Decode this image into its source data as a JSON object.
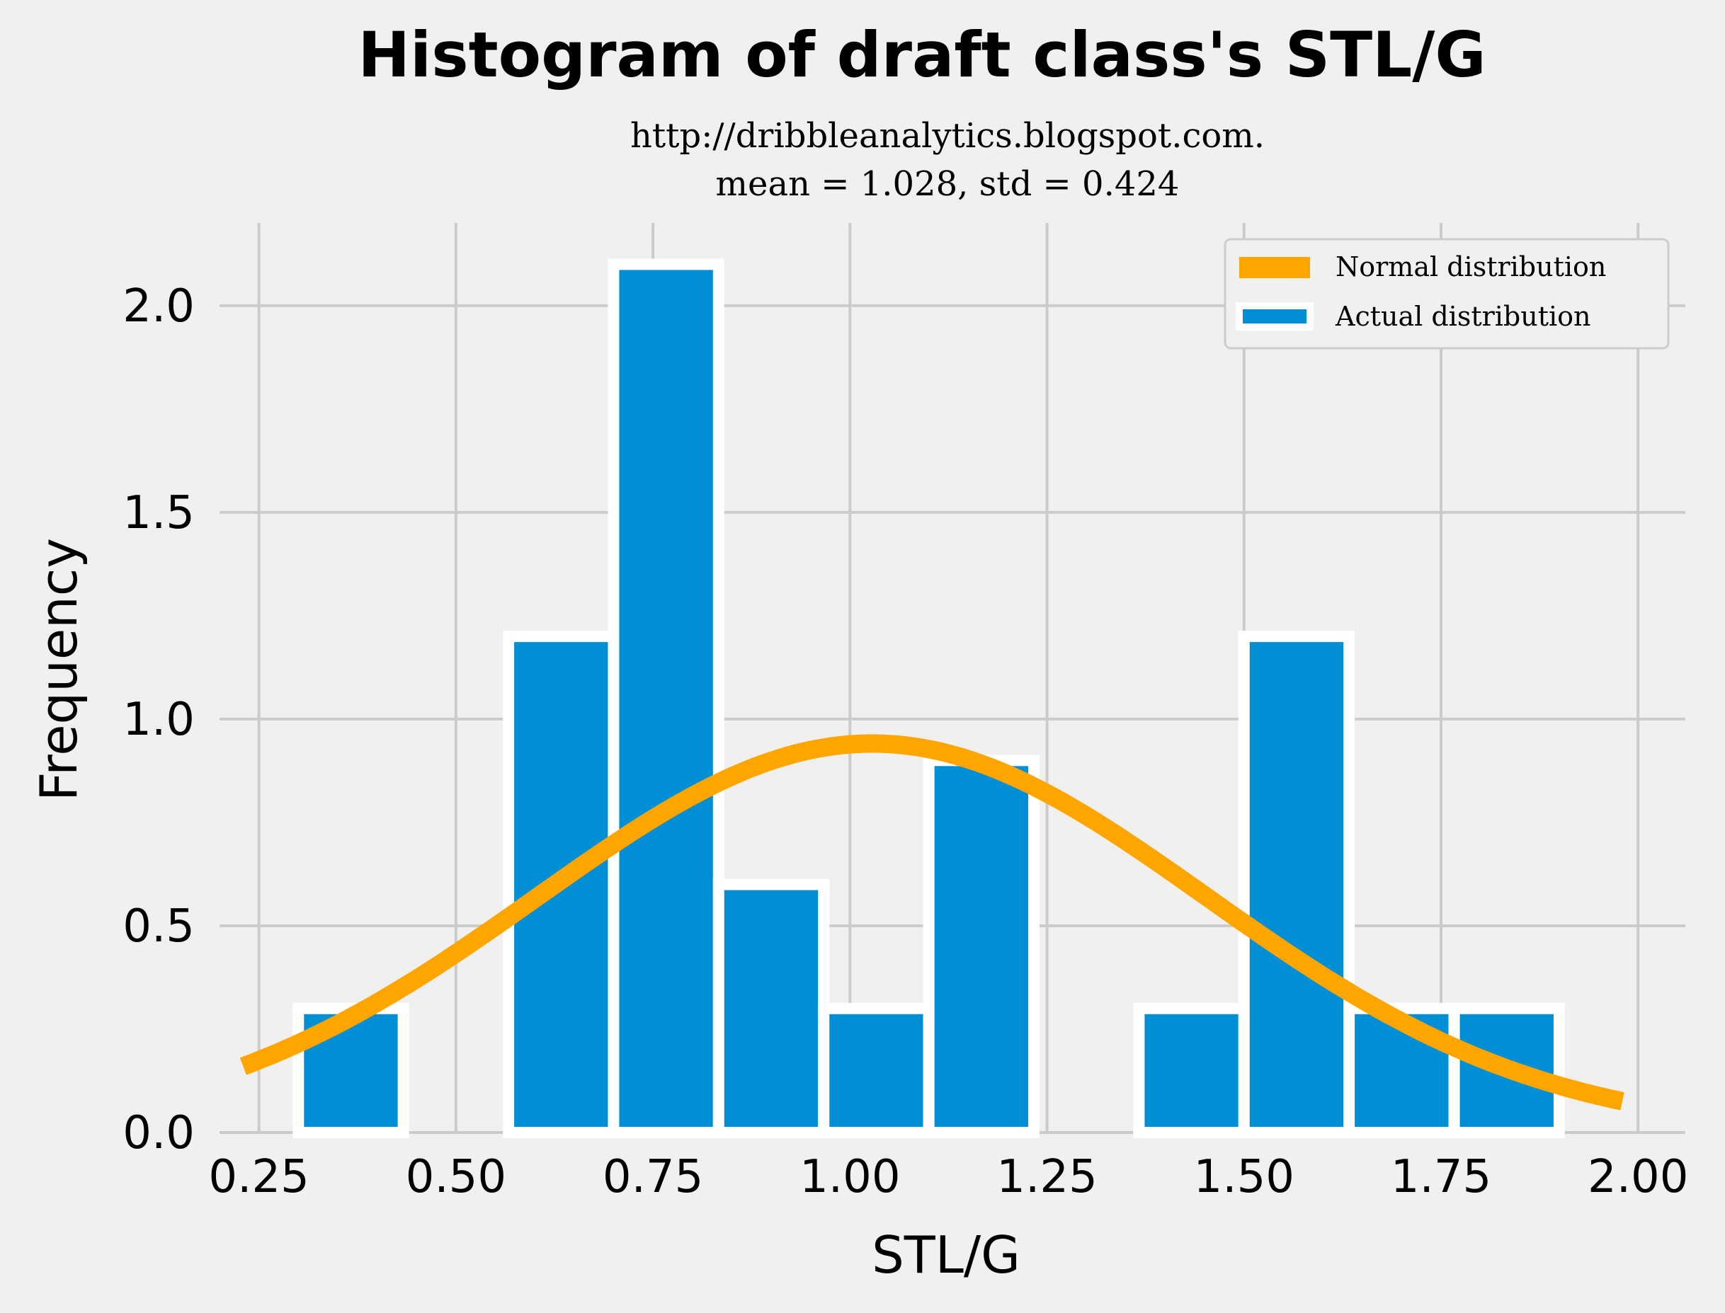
{
  "chart_data": {
    "type": "bar",
    "title": "Histogram of draft class's STL/G",
    "subtitle_lines": [
      "http://dribbleanalytics.blogspot.com.",
      "mean = 1.028, std = 0.424"
    ],
    "xlabel": "STL/G",
    "ylabel": "Frequency",
    "xlim": [
      0.2,
      2.06
    ],
    "ylim": [
      0,
      2.2
    ],
    "xticks": [
      0.25,
      0.5,
      0.75,
      1.0,
      1.25,
      1.5,
      1.75,
      2.0
    ],
    "xtick_labels": [
      "0.25",
      "0.50",
      "0.75",
      "1.00",
      "1.25",
      "1.50",
      "1.75",
      "2.00"
    ],
    "yticks": [
      0.0,
      0.5,
      1.0,
      1.5,
      2.0
    ],
    "ytick_labels": [
      "0.0",
      "0.5",
      "1.0",
      "1.5",
      "2.0"
    ],
    "grid": true,
    "legend_position": "top-right",
    "bin_edges": [
      0.3,
      0.4333,
      0.5667,
      0.7,
      0.8333,
      0.9667,
      1.1,
      1.2333,
      1.3667,
      1.5,
      1.6333,
      1.7667,
      1.9
    ],
    "series": [
      {
        "name": "Actual distribution",
        "kind": "histogram",
        "color": "#008fd5",
        "values": [
          0.3,
          0,
          1.2,
          2.1,
          0.6,
          0.3,
          0.9,
          0,
          0.3,
          1.2,
          0.3,
          0.3
        ]
      },
      {
        "name": "Normal distribution",
        "kind": "line",
        "color": "#ffa500",
        "mean": 1.028,
        "std": 0.424,
        "x_range": [
          0.23,
          1.98
        ]
      }
    ]
  }
}
